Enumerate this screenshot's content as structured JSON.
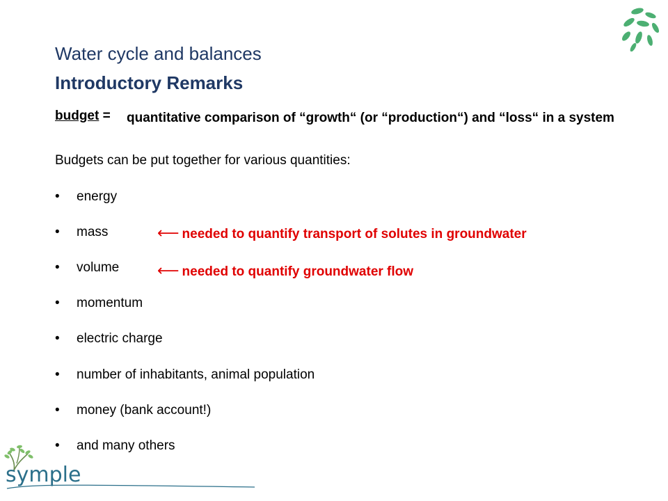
{
  "header": {
    "title": "Water cycle and balances",
    "subtitle": "Introductory Remarks"
  },
  "definition": {
    "term": "budget",
    "equals": " =",
    "text": "quantitative comparison of “growth“ (or “production“) and “loss“  in a system"
  },
  "intro": "Budgets can be put together for various quantities:",
  "bullets": [
    {
      "label": "energy"
    },
    {
      "label": "mass"
    },
    {
      "label": "volume"
    },
    {
      "label": "momentum"
    },
    {
      "label": "electric charge"
    },
    {
      "label": "number of inhabitants, animal population"
    },
    {
      "label": "money (bank account!)"
    },
    {
      "label": "and many others"
    }
  ],
  "notes": {
    "arrow": "⟵",
    "mass": "needed to quantify transport of solutes in groundwater",
    "volume": "needed to quantify groundwater flow"
  },
  "logo": {
    "text": "symple",
    "leaf_color": "#4caf72",
    "text_color": "#2b6f8a"
  },
  "colors": {
    "title": "#1f3864",
    "note": "#e00000"
  }
}
